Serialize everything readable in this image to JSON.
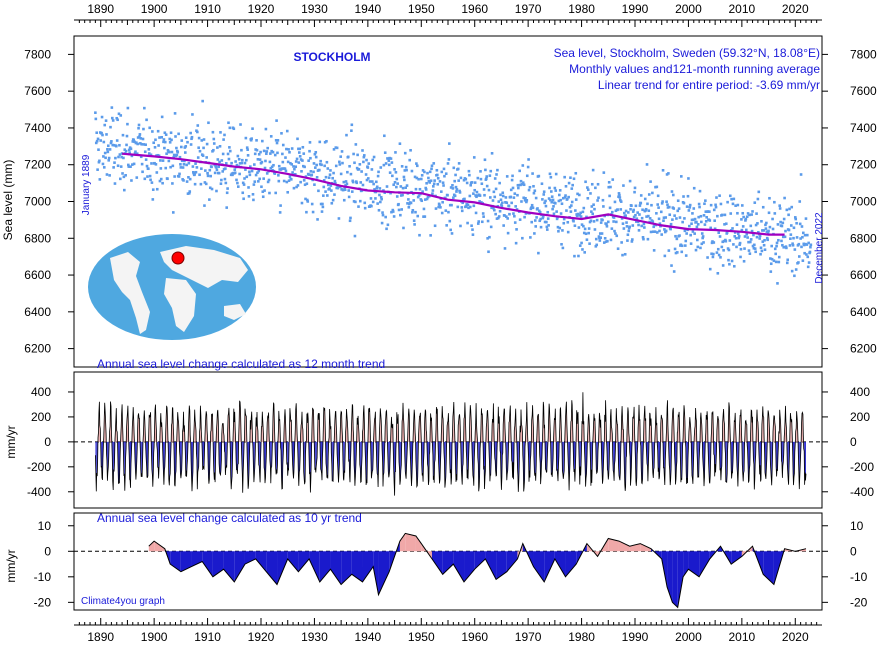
{
  "chart_data": [
    {
      "type": "scatter",
      "title": "STOCKHOLM",
      "subtitle_lines": [
        "Sea level, Stockholm, Sweden (59.32°N, 18.08°E)",
        "Monthly values and121-month running average",
        "Linear trend for entire period: -3.69 mm/yr"
      ],
      "ylabel": "Sea level (mm)",
      "start_label": "January 1889",
      "end_label": "December 2022",
      "xlim": [
        1885,
        2025
      ],
      "ylim": [
        6100,
        7900
      ],
      "x_ticks": [
        1890,
        1900,
        1910,
        1920,
        1930,
        1940,
        1950,
        1960,
        1970,
        1980,
        1990,
        2000,
        2010,
        2020
      ],
      "y_ticks": [
        6200,
        6400,
        6600,
        6800,
        7000,
        7200,
        7400,
        7600,
        7800
      ],
      "monthly_trend": {
        "start_year": 1889,
        "end_year": 2022,
        "start_value": 7300,
        "end_value": 6790,
        "spread": 180
      },
      "running_average": {
        "x": [
          1894,
          1900,
          1905,
          1910,
          1915,
          1920,
          1925,
          1930,
          1935,
          1940,
          1945,
          1950,
          1955,
          1960,
          1965,
          1970,
          1975,
          1980,
          1985,
          1990,
          1995,
          2000,
          2005,
          2010,
          2015,
          2018
        ],
        "y": [
          7260,
          7245,
          7230,
          7210,
          7190,
          7175,
          7150,
          7120,
          7085,
          7060,
          7050,
          7045,
          7010,
          6995,
          6965,
          6940,
          6920,
          6905,
          6930,
          6900,
          6870,
          6850,
          6845,
          6835,
          6820,
          6820
        ]
      },
      "colors": {
        "points": "#5b9bea",
        "average": "#a000c0"
      },
      "map_marker_color": "#ff0000"
    },
    {
      "type": "area",
      "title": "Annual sea level change calculated as 12 month trend",
      "ylabel": "mm/yr",
      "xlim": [
        1885,
        2025
      ],
      "ylim": [
        -530,
        560
      ],
      "y_ticks": [
        -400,
        -200,
        0,
        200,
        400
      ],
      "series_range": [
        1889,
        2022
      ],
      "typical_amplitude": 300,
      "colors": {
        "positive": "#e8a0a0",
        "negative": "#1a1acc",
        "line": "#000000"
      }
    },
    {
      "type": "area",
      "title": "Annual sea level change calculated as 10 yr trend",
      "ylabel": "mm/yr",
      "credit": "Climate4you graph",
      "xlim": [
        1885,
        2025
      ],
      "ylim": [
        -23,
        15
      ],
      "y_ticks": [
        -20,
        -10,
        0,
        10
      ],
      "x": [
        1899,
        1900,
        1902,
        1903,
        1905,
        1907,
        1909,
        1911,
        1913,
        1915,
        1917,
        1919,
        1921,
        1923,
        1925,
        1927,
        1929,
        1931,
        1933,
        1935,
        1937,
        1939,
        1941,
        1942,
        1944,
        1946,
        1947,
        1949,
        1950,
        1952,
        1954,
        1956,
        1958,
        1960,
        1962,
        1964,
        1966,
        1968,
        1969,
        1971,
        1973,
        1975,
        1977,
        1979,
        1981,
        1983,
        1985,
        1987,
        1989,
        1991,
        1993,
        1995,
        1996,
        1997,
        1998,
        1999,
        2000,
        2002,
        2004,
        2006,
        2008,
        2010,
        2012,
        2014,
        2016,
        2018,
        2020,
        2022
      ],
      "values": [
        2,
        4,
        1,
        -5,
        -8,
        -6,
        -4,
        -10,
        -7,
        -12,
        -5,
        -3,
        -8,
        -13,
        -3,
        -8,
        -3,
        -12,
        -7,
        -13,
        -9,
        -12,
        -6,
        -17,
        -8,
        4,
        7,
        6,
        3,
        -3,
        -9,
        -5,
        -12,
        -7,
        -3,
        -11,
        -8,
        -3,
        3,
        -6,
        -12,
        -3,
        -10,
        -5,
        3,
        -2,
        5,
        4,
        2,
        3,
        1,
        -3,
        -14,
        -20,
        -22,
        -10,
        -7,
        -10,
        -3,
        2,
        -5,
        -2,
        2,
        -9,
        -13,
        1,
        0,
        1
      ],
      "colors": {
        "positive": "#f0a8a8",
        "negative": "#1a1acc",
        "line": "#000000"
      }
    }
  ]
}
